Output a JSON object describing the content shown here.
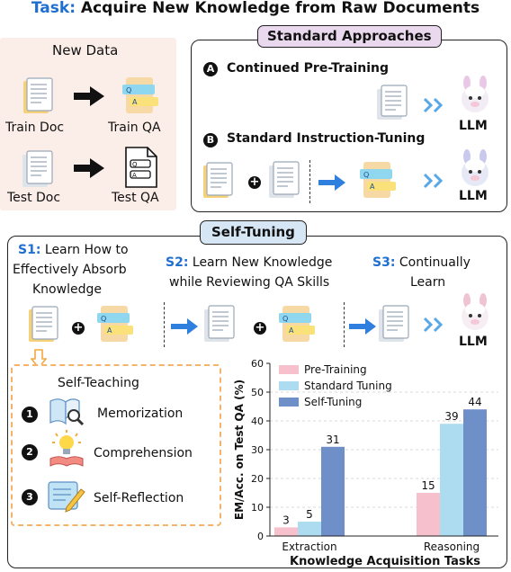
{
  "task": {
    "prefix": "Task:",
    "text": "Acquire New Knowledge from Raw Documents"
  },
  "new_data": {
    "title": "New Data",
    "train_doc": "Train Doc",
    "train_qa": "Train QA",
    "test_doc": "Test Doc",
    "test_qa": "Test QA"
  },
  "standard": {
    "title": "Standard Approaches",
    "a_badge": "A",
    "a_label": "Continued Pre-Training",
    "b_badge": "B",
    "b_label": "Standard Instruction-Tuning",
    "llm": "LLM"
  },
  "self_tuning": {
    "title": "Self-Tuning",
    "s1_prefix": "S1:",
    "s1_line1": "Learn How to",
    "s1_line2": "Effectively Absorb",
    "s1_line3": "Knowledge",
    "s2_prefix": "S2:",
    "s2_line1": "Learn New Knowledge",
    "s2_line2": "while Reviewing QA Skills",
    "s3_prefix": "S3:",
    "s3_line1": "Continually",
    "s3_line2": "Learn",
    "llm": "LLM"
  },
  "self_teaching": {
    "title": "Self-Teaching",
    "items": [
      {
        "badge": "1",
        "label": "Memorization"
      },
      {
        "badge": "2",
        "label": "Comprehension"
      },
      {
        "badge": "3",
        "label": "Self-Reflection"
      }
    ]
  },
  "colors": {
    "pre_training": "#f6c1cc",
    "standard_tuning": "#addcf0",
    "self_tuning": "#6f8fc9",
    "accent_blue": "#1f6fd1",
    "dashed_orange": "#f3b36a"
  },
  "chart_data": {
    "type": "bar",
    "categories": [
      "Extraction",
      "Reasoning"
    ],
    "series": [
      {
        "name": "Pre-Training",
        "values": [
          3,
          15
        ]
      },
      {
        "name": "Standard Tuning",
        "values": [
          5,
          39
        ]
      },
      {
        "name": "Self-Tuning",
        "values": [
          31,
          44
        ]
      }
    ],
    "xlabel": "Knowledge Acquisition Tasks",
    "ylabel": "EM/Acc. on Test QA (%)",
    "ylim": [
      0,
      60
    ],
    "yticks": [
      "0",
      "10",
      "20",
      "30",
      "40",
      "50",
      "60"
    ],
    "grid": true,
    "legend": "top-left"
  }
}
